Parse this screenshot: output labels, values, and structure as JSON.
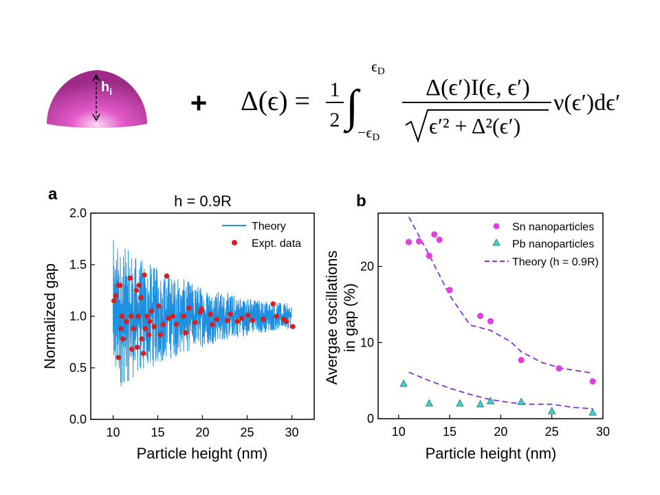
{
  "header": {
    "dome_label_main": "h",
    "dome_label_sub": "i",
    "plus_sign": "+",
    "equation": {
      "lhs": "Δ(ϵ) =",
      "fraction_num": "1",
      "fraction_den": "2",
      "integral": "∫",
      "upper_limit_main": "ϵ",
      "upper_limit_sub": "D",
      "lower_limit_main": "−ϵ",
      "lower_limit_sub": "D",
      "numerator": "Δ(ϵ′)I(ϵ, ϵ′)",
      "denominator": "ϵ′² + Δ²(ϵ′)",
      "tail": "ν(ϵ′)dϵ′"
    }
  },
  "colors": {
    "dome": "#d946b8",
    "theory_line": "#1f8fe0",
    "expt_points": "#d42020",
    "sn_points": "#e040e0",
    "pb_points": "#40d0d0",
    "theory_dash": "#8a2be2"
  },
  "chart_data": [
    {
      "type": "line",
      "panel_label": "a",
      "title": "h = 0.9R",
      "xlabel": "Particle height (nm)",
      "ylabel": "Normalized gap",
      "xlim": [
        7.5,
        32.5
      ],
      "ylim": [
        0.0,
        2.0
      ],
      "xticks": [
        "10",
        "15",
        "20",
        "25",
        "30"
      ],
      "yticks": [
        "0.0",
        "0.5",
        "1.0",
        "1.5",
        "2.0"
      ],
      "legend_position": "top-right",
      "series": [
        {
          "name": "Theory",
          "type": "line",
          "x_range": [
            10,
            30
          ],
          "envelope_at_10nm": 0.75,
          "envelope_at_30nm": 0.12,
          "center": 1.0
        },
        {
          "name": "Expt. data",
          "type": "scatter",
          "points": [
            [
              10.1,
              1.15
            ],
            [
              10.3,
              1.2
            ],
            [
              10.6,
              1.3
            ],
            [
              10.8,
              1.3
            ],
            [
              10.6,
              0.6
            ],
            [
              10.9,
              0.88
            ],
            [
              11.0,
              1.0
            ],
            [
              11.1,
              0.78
            ],
            [
              11.5,
              0.95
            ],
            [
              11.9,
              1.37
            ],
            [
              12.0,
              1.0
            ],
            [
              12.1,
              0.68
            ],
            [
              12.3,
              0.88
            ],
            [
              12.6,
              1.25
            ],
            [
              12.9,
              1.3
            ],
            [
              12.8,
              1.0
            ],
            [
              12.7,
              0.7
            ],
            [
              13.2,
              0.78
            ],
            [
              13.1,
              1.18
            ],
            [
              13.4,
              0.64
            ],
            [
              13.5,
              1.4
            ],
            [
              13.6,
              0.88
            ],
            [
              13.8,
              1.0
            ],
            [
              14.1,
              0.95
            ],
            [
              14.3,
              1.05
            ],
            [
              14.0,
              0.82
            ],
            [
              14.6,
              0.9
            ],
            [
              15.1,
              1.1
            ],
            [
              15.3,
              0.82
            ],
            [
              15.6,
              0.92
            ],
            [
              16.0,
              1.39
            ],
            [
              16.2,
              0.98
            ],
            [
              16.7,
              1.0
            ],
            [
              17.1,
              0.92
            ],
            [
              17.9,
              1.0
            ],
            [
              18.1,
              0.84
            ],
            [
              18.5,
              1.08
            ],
            [
              19.2,
              0.94
            ],
            [
              19.8,
              1.04
            ],
            [
              19.9,
              1.07
            ],
            [
              20.9,
              1.02
            ],
            [
              21.1,
              0.92
            ],
            [
              21.6,
              0.97
            ],
            [
              22.8,
              0.96
            ],
            [
              23.1,
              1.02
            ],
            [
              23.9,
              0.95
            ],
            [
              24.4,
              0.98
            ],
            [
              25.1,
              1.01
            ],
            [
              25.6,
              0.96
            ],
            [
              26.8,
              0.97
            ],
            [
              27.9,
              1.12
            ],
            [
              28.3,
              1.0
            ],
            [
              29.1,
              0.97
            ],
            [
              29.4,
              0.95
            ],
            [
              30.1,
              0.9
            ]
          ]
        }
      ]
    },
    {
      "type": "scatter",
      "panel_label": "b",
      "title": "",
      "xlabel": "Particle height (nm)",
      "ylabel_line1": "Avergae oscillations",
      "ylabel_line2": "in gap (%)",
      "xlim": [
        8,
        30
      ],
      "ylim": [
        0,
        27
      ],
      "xticks": [
        "10",
        "15",
        "20",
        "25",
        "30"
      ],
      "yticks": [
        "0",
        "10",
        "20"
      ],
      "legend_position": "top-right",
      "series": [
        {
          "name": "Sn nanoparticles",
          "type": "scatter",
          "points": [
            [
              11,
              23.2
            ],
            [
              12,
              23.3
            ],
            [
              13,
              21.4
            ],
            [
              13.5,
              24.2
            ],
            [
              14,
              23.5
            ],
            [
              15,
              16.9
            ],
            [
              18,
              13.5
            ],
            [
              19,
              12.8
            ],
            [
              22,
              7.7
            ],
            [
              25.7,
              6.6
            ],
            [
              29,
              4.9
            ]
          ]
        },
        {
          "name": "Pb nanoparticles",
          "type": "scatter",
          "points": [
            [
              10.5,
              4.6
            ],
            [
              13,
              2.0
            ],
            [
              16,
              2.0
            ],
            [
              18,
              1.9
            ],
            [
              19,
              2.3
            ],
            [
              22,
              2.2
            ],
            [
              25,
              1.0
            ],
            [
              29,
              0.8
            ]
          ]
        },
        {
          "name": "Theory (h = 0.9R)",
          "type": "line",
          "segments": [
            [
              [
                11,
                26.5
              ],
              [
                13,
                21.5
              ],
              [
                15,
                16.2
              ],
              [
                17,
                12.3
              ],
              [
                19,
                11.6
              ],
              [
                21,
                10.1
              ],
              [
                22,
                8.8
              ],
              [
                24,
                7.4
              ],
              [
                26,
                6.6
              ],
              [
                29,
                6.0
              ]
            ],
            [
              [
                11,
                6.1
              ],
              [
                13,
                5.0
              ],
              [
                15,
                4.0
              ],
              [
                17,
                3.2
              ],
              [
                19,
                2.5
              ],
              [
                21,
                2.1
              ],
              [
                23,
                1.9
              ],
              [
                25,
                1.9
              ],
              [
                27,
                1.5
              ],
              [
                29,
                1.3
              ]
            ]
          ]
        }
      ]
    }
  ]
}
